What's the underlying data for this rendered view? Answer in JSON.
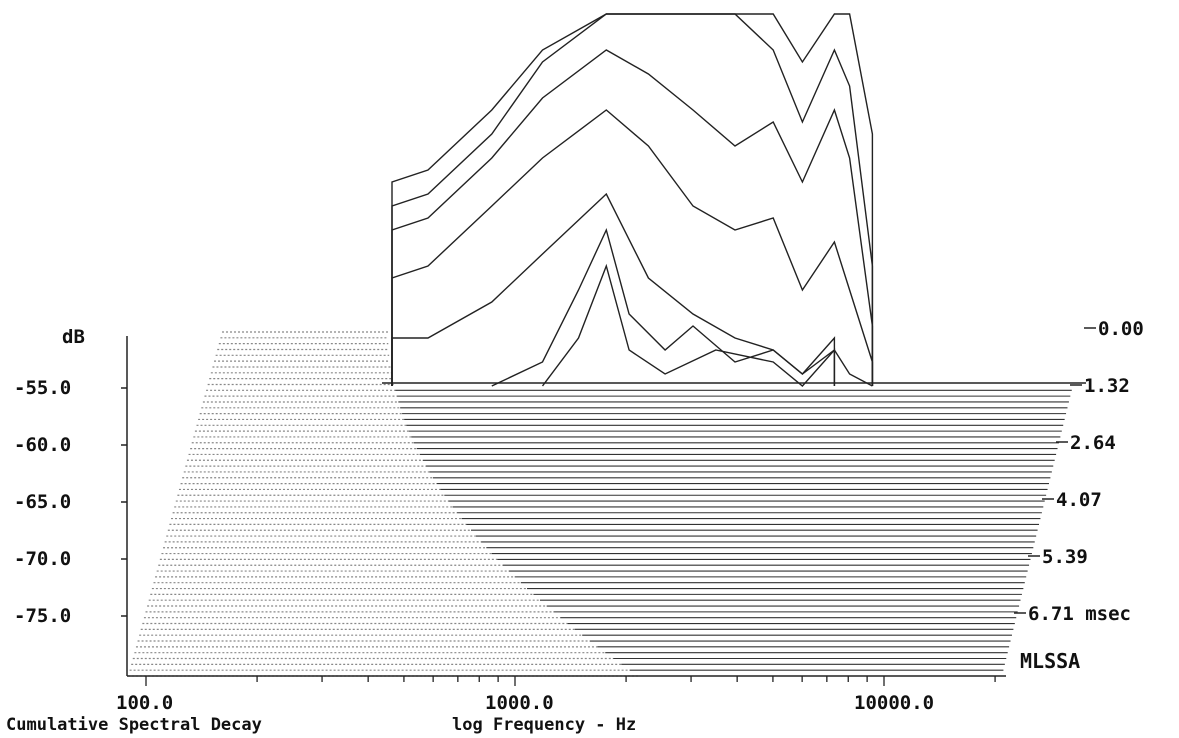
{
  "chart_data": {
    "type": "line",
    "title": "Cumulative Spectral Decay",
    "xlabel": "log Frequency - Hz",
    "ylabel": "dB",
    "brand": "MLSSA",
    "x_scale": "log",
    "x_ticks": [
      "100.0",
      "1000.0",
      "10000.0"
    ],
    "y_ticks": [
      "-55.0",
      "-60.0",
      "-65.0",
      "-70.0",
      "-75.0"
    ],
    "ylim": [
      -80,
      -50
    ],
    "time_ticks": [
      "0.00",
      "1.32",
      "2.64",
      "4.07",
      "5.39",
      "6.71 msec"
    ],
    "series": [
      {
        "t": 0.0,
        "freq": [
          450,
          600,
          1000,
          1500,
          2500,
          3500,
          5000,
          7000,
          9500,
          12000,
          15500,
          17500,
          21000
        ],
        "db": [
          -63.0,
          -62.0,
          -57.0,
          -52.0,
          -46.5,
          -46.0,
          -45.0,
          -46.0,
          -45.0,
          -53.0,
          -45.0,
          -47.0,
          -59.0
        ]
      },
      {
        "t": 0.33,
        "freq": [
          450,
          600,
          1000,
          1500,
          2500,
          3500,
          5000,
          7000,
          9500,
          12000,
          15500,
          17500,
          21000
        ],
        "db": [
          -65.0,
          -64.0,
          -59.0,
          -53.0,
          -48.0,
          -48.0,
          -47.5,
          -49.0,
          -52.0,
          -58.0,
          -52.0,
          -55.0,
          -70.0
        ]
      },
      {
        "t": 0.66,
        "freq": [
          450,
          600,
          1000,
          1500,
          2500,
          3500,
          5000,
          7000,
          9500,
          12000,
          15500,
          17500,
          21000
        ],
        "db": [
          -67.0,
          -66.0,
          -61.0,
          -56.0,
          -52.0,
          -54.0,
          -57.0,
          -60.0,
          -58.0,
          -63.0,
          -57.0,
          -61.0,
          -75.0
        ]
      },
      {
        "t": 0.99,
        "freq": [
          450,
          600,
          1000,
          1500,
          2500,
          3500,
          5000,
          7000,
          9500,
          12000,
          15500,
          17500,
          21000
        ],
        "db": [
          -71.0,
          -70.0,
          -65.0,
          -61.0,
          -57.0,
          -60.0,
          -65.0,
          -67.0,
          -66.0,
          -72.0,
          -68.0,
          -72.0,
          -78.0
        ]
      },
      {
        "t": 1.32,
        "freq": [
          450,
          600,
          1000,
          1500,
          2500,
          3500,
          5000,
          7000,
          9500,
          12000,
          15500,
          17500,
          21000
        ],
        "db": [
          -76.0,
          -76.0,
          -73.0,
          -69.0,
          -64.0,
          -71.0,
          -74.0,
          -76.0,
          -77.0,
          -79.0,
          -77.0,
          -79.0,
          -80.0
        ]
      },
      {
        "t": 1.65,
        "freq": [
          1000,
          1500,
          2000,
          2500,
          3000,
          4000,
          5000,
          7000,
          9500,
          12000,
          15500
        ],
        "db": [
          -80.0,
          -78.0,
          -72.0,
          -67.0,
          -74.0,
          -77.0,
          -75.0,
          -78.0,
          -77.0,
          -79.0,
          -76.0
        ]
      },
      {
        "t": 1.98,
        "freq": [
          1500,
          2000,
          2500,
          3000,
          4000,
          6000,
          9500,
          12000,
          15500
        ],
        "db": [
          -80.0,
          -76.0,
          -70.0,
          -77.0,
          -79.0,
          -77.0,
          -78.0,
          -80.0,
          -77.0
        ]
      }
    ]
  }
}
